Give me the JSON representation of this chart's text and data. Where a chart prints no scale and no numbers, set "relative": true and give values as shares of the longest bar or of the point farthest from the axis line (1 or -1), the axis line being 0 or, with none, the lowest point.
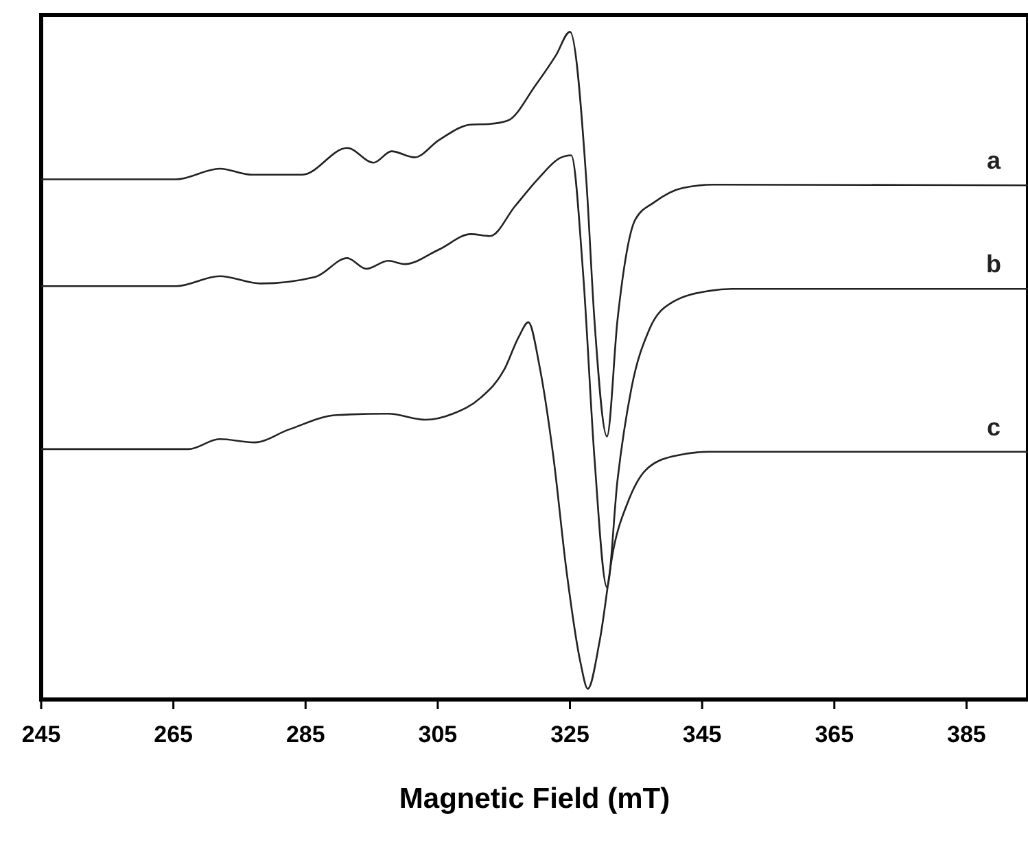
{
  "chart_data": {
    "type": "line",
    "relative": true,
    "xlabel": "Magnetic Field (mT)",
    "xlim": [
      245,
      394.3
    ],
    "xticks": [
      245,
      265,
      285,
      305,
      325,
      345,
      365,
      385
    ],
    "grid": false,
    "legend": false,
    "marker": "none",
    "line_style": "solid",
    "series": [
      {
        "name": "a",
        "color": "#222222",
        "x": [
          245,
          265.4,
          272.0,
          276.8,
          284.5,
          291.3,
          295.3,
          298.0,
          301.5,
          305.2,
          310.0,
          312.9,
          315.6,
          319.8,
          322.9,
          325.0,
          327.5,
          328.7,
          330.6,
          332.2,
          334.9,
          337.8,
          342.0,
          346.8,
          394.3
        ],
        "values": [
          0.779,
          0.779,
          0.795,
          0.786,
          0.786,
          0.826,
          0.804,
          0.821,
          0.812,
          0.838,
          0.861,
          0.862,
          0.867,
          0.92,
          0.965,
          1.0,
          0.774,
          0.569,
          0.394,
          0.569,
          0.719,
          0.745,
          0.766,
          0.771,
          0.77
        ]
      },
      {
        "name": "b",
        "color": "#222222",
        "x": [
          245,
          265.4,
          272.0,
          278.2,
          286.5,
          291.3,
          294.2,
          297.5,
          300.0,
          305.2,
          310.0,
          312.9,
          316.7,
          320.2,
          323.5,
          325.2,
          327.0,
          328.7,
          330.6,
          332.2,
          334.3,
          337.0,
          340.5,
          346.1,
          349.5,
          394.3
        ],
        "values": [
          0.619,
          0.619,
          0.634,
          0.623,
          0.633,
          0.661,
          0.645,
          0.657,
          0.652,
          0.674,
          0.697,
          0.694,
          0.739,
          0.78,
          0.811,
          0.815,
          0.637,
          0.363,
          0.168,
          0.329,
          0.466,
          0.554,
          0.595,
          0.612,
          0.615,
          0.615
        ]
      },
      {
        "name": "c",
        "color": "#222222",
        "x": [
          245,
          267.3,
          272.0,
          277.3,
          282.4,
          289.7,
          297.5,
          303.2,
          307.3,
          311.5,
          315.0,
          317.3,
          318.7,
          320.4,
          322.5,
          324.5,
          326.6,
          327.7,
          329.5,
          331.6,
          333.7,
          336.4,
          340.5,
          346.1,
          394.3
        ],
        "values": [
          0.375,
          0.375,
          0.39,
          0.385,
          0.404,
          0.426,
          0.428,
          0.419,
          0.428,
          0.452,
          0.493,
          0.544,
          0.565,
          0.499,
          0.363,
          0.191,
          0.055,
          0.016,
          0.088,
          0.226,
          0.294,
          0.343,
          0.364,
          0.371,
          0.371
        ]
      }
    ]
  }
}
